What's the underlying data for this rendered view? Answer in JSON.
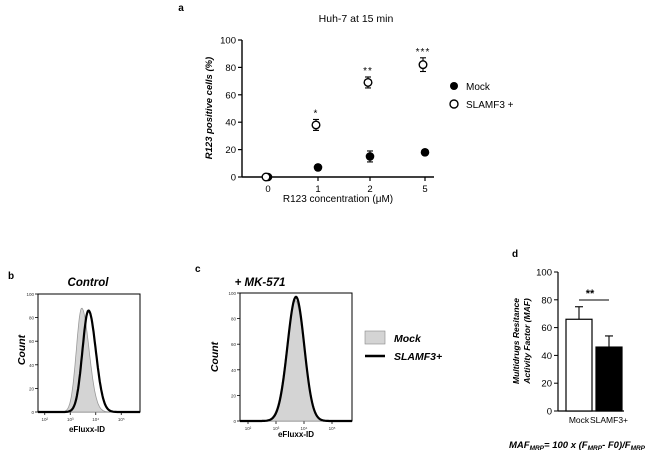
{
  "panel_a": {
    "letter": "a",
    "title": "Huh-7 at 15 min",
    "xlabel": "R123 concentration (μM)",
    "ylabel": "R123 positive cells (%)",
    "legend": {
      "mock": "Mock",
      "slamf3": "SLAMF3 +"
    }
  },
  "panel_b": {
    "letter": "b",
    "title": "Control",
    "xlabel": "eFluxx-ID",
    "ylabel": "Count",
    "yticks": [
      "0",
      "20",
      "40",
      "60",
      "80",
      "100"
    ],
    "xticks": [
      "10²",
      "10³",
      "10⁴",
      "10⁵"
    ]
  },
  "panel_c": {
    "letter": "c",
    "title": "+ MK-571",
    "xlabel": "eFluxx-ID",
    "ylabel": "Count",
    "yticks": [
      "0",
      "20",
      "40",
      "60",
      "80",
      "100"
    ],
    "xticks": [
      "10²",
      "10³",
      "10⁴",
      "10⁵"
    ],
    "legend": {
      "mock": "Mock",
      "slamf3": "SLAMF3+"
    }
  },
  "panel_d": {
    "letter": "d",
    "ylabel_line1": "Multidrugs Resitance",
    "ylabel_line2": "Activity Factor (MAF)",
    "significance": "**",
    "formula": {
      "lhs_base": "MAF",
      "lhs_sub": "MRP",
      "mid1": "= 100 x (F",
      "mid1_sub": "MRP",
      "mid2": "- F0)/F",
      "rhs_sub": "MRP"
    }
  },
  "chart_data": [
    {
      "id": "a",
      "type": "scatter",
      "title": "Huh-7 at 15 min",
      "xlabel": "R123 concentration (μM)",
      "ylabel": "R123 positive cells (%)",
      "categories": [
        "0",
        "1",
        "2",
        "5"
      ],
      "ylim": [
        0,
        100
      ],
      "yticks": [
        0,
        20,
        40,
        60,
        80,
        100
      ],
      "series": [
        {
          "name": "Mock",
          "marker": "filled-circle",
          "values": [
            0,
            7,
            15,
            18
          ],
          "errors": [
            0.5,
            2,
            4,
            2
          ]
        },
        {
          "name": "SLAMF3 +",
          "marker": "open-circle",
          "values": [
            0,
            38,
            69,
            82
          ],
          "errors": [
            0.5,
            4,
            4,
            5
          ]
        }
      ],
      "annotations": [
        {
          "category": "1",
          "text": "*"
        },
        {
          "category": "2",
          "text": "**"
        },
        {
          "category": "5",
          "text": "***"
        }
      ],
      "legend_position": "right"
    },
    {
      "id": "d",
      "type": "bar",
      "ylabel": "Multidrugs Resitance Activity Factor (MAF)",
      "categories": [
        "Mock",
        "SLAMF3+"
      ],
      "values": [
        66,
        46
      ],
      "errors": [
        9,
        8
      ],
      "fills": [
        "#ffffff",
        "#000000"
      ],
      "ylim": [
        0,
        100
      ],
      "yticks": [
        0,
        20,
        40,
        60,
        80,
        100
      ],
      "annotations": [
        {
          "between": [
            "Mock",
            "SLAMF3+"
          ],
          "text": "**"
        }
      ]
    }
  ],
  "histograms": {
    "axis_max": 100,
    "log_min": 1.2,
    "log_max": 5.4,
    "b": {
      "mock": {
        "label": "Mock",
        "fill": "#d4d4d4",
        "mode": 3.0,
        "peak": 88,
        "sl": 0.22,
        "sr": 0.3
      },
      "slamf3": {
        "label": "SLAMF3+",
        "mode": 3.28,
        "peak": 86,
        "sl": 0.25,
        "sr": 0.3
      }
    },
    "c": {
      "mock": {
        "label": "Mock",
        "fill": "#d4d4d4",
        "mode": 3.28,
        "peak": 94,
        "sl": 0.33,
        "sr": 0.32
      },
      "slamf3": {
        "label": "SLAMF3+",
        "mode": 3.3,
        "peak": 97,
        "sl": 0.32,
        "sr": 0.31
      }
    }
  }
}
